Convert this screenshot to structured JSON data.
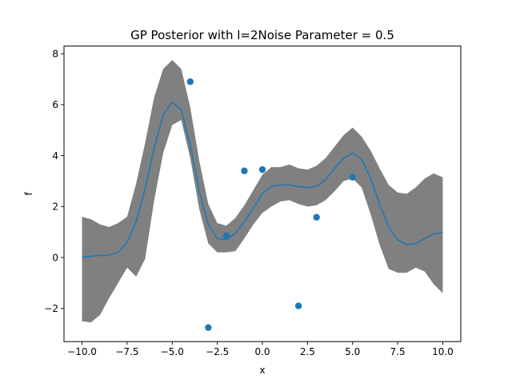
{
  "chart_data": {
    "type": "line",
    "title": "GP Posterior with l=2Noise Parameter = 0.5",
    "xlabel": "x",
    "ylabel": "f",
    "xlim": [
      -11.0,
      11.0
    ],
    "ylim": [
      -3.3,
      8.3
    ],
    "grid": false,
    "xticks": [
      -10,
      -7.5,
      -5,
      -2.5,
      0,
      2.5,
      5,
      7.5,
      10
    ],
    "xtick_labels": [
      "−10.0",
      "−7.5",
      "−5.0",
      "−2.5",
      "0.0",
      "2.5",
      "5.0",
      "7.5",
      "10.0"
    ],
    "yticks": [
      -2,
      0,
      2,
      4,
      6,
      8
    ],
    "ytick_labels": [
      "−2",
      "0",
      "2",
      "4",
      "6",
      "8"
    ],
    "colors": {
      "mean": "#1f77b4",
      "band": "#808080",
      "points": "#1f77b4"
    },
    "mean": {
      "x": [
        -10,
        -9.5,
        -9,
        -8.5,
        -8,
        -7.5,
        -7,
        -6.5,
        -6,
        -5.5,
        -5,
        -4.5,
        -4,
        -3.5,
        -3,
        -2.5,
        -2,
        -1.5,
        -1,
        -0.5,
        0,
        0.5,
        1,
        1.5,
        2,
        2.5,
        3,
        3.5,
        4,
        4.5,
        5,
        5.5,
        6,
        6.5,
        7,
        7.5,
        8,
        8.5,
        9,
        9.5,
        10
      ],
      "y": [
        0.0,
        0.05,
        0.08,
        0.09,
        0.2,
        0.6,
        1.4,
        2.7,
        4.3,
        5.6,
        6.1,
        5.8,
        4.4,
        2.6,
        1.3,
        0.75,
        0.7,
        0.95,
        1.4,
        1.95,
        2.5,
        2.8,
        2.85,
        2.85,
        2.78,
        2.75,
        2.8,
        3.05,
        3.5,
        3.9,
        4.1,
        3.85,
        3.1,
        2.1,
        1.2,
        0.7,
        0.5,
        0.55,
        0.75,
        0.92,
        0.98
      ]
    },
    "band": {
      "upper": [
        1.6,
        1.5,
        1.3,
        1.2,
        1.35,
        1.6,
        2.9,
        4.5,
        6.3,
        7.4,
        7.75,
        7.4,
        5.9,
        3.8,
        2.1,
        1.35,
        1.25,
        1.55,
        2.05,
        2.65,
        3.25,
        3.55,
        3.55,
        3.65,
        3.5,
        3.45,
        3.6,
        3.9,
        4.35,
        4.8,
        5.1,
        4.75,
        4.2,
        3.5,
        2.85,
        2.55,
        2.5,
        2.75,
        3.1,
        3.3,
        3.15
      ],
      "lower": [
        -2.5,
        -2.55,
        -2.25,
        -1.6,
        -1.0,
        -0.4,
        -0.75,
        -0.05,
        2.25,
        4.1,
        5.2,
        5.4,
        3.9,
        1.9,
        0.55,
        0.2,
        0.2,
        0.25,
        0.75,
        1.3,
        1.75,
        2.0,
        2.2,
        2.25,
        2.1,
        2.0,
        2.05,
        2.25,
        2.6,
        3.0,
        3.1,
        2.75,
        1.7,
        0.5,
        -0.45,
        -0.6,
        -0.6,
        -0.4,
        -0.55,
        -1.05,
        -1.4
      ]
    },
    "points": {
      "x": [
        -4.0,
        -3.0,
        -2.0,
        -1.0,
        0.0,
        2.0,
        3.0,
        5.0
      ],
      "y": [
        6.9,
        -2.75,
        0.85,
        3.4,
        3.45,
        -1.9,
        1.58,
        3.15
      ]
    }
  }
}
